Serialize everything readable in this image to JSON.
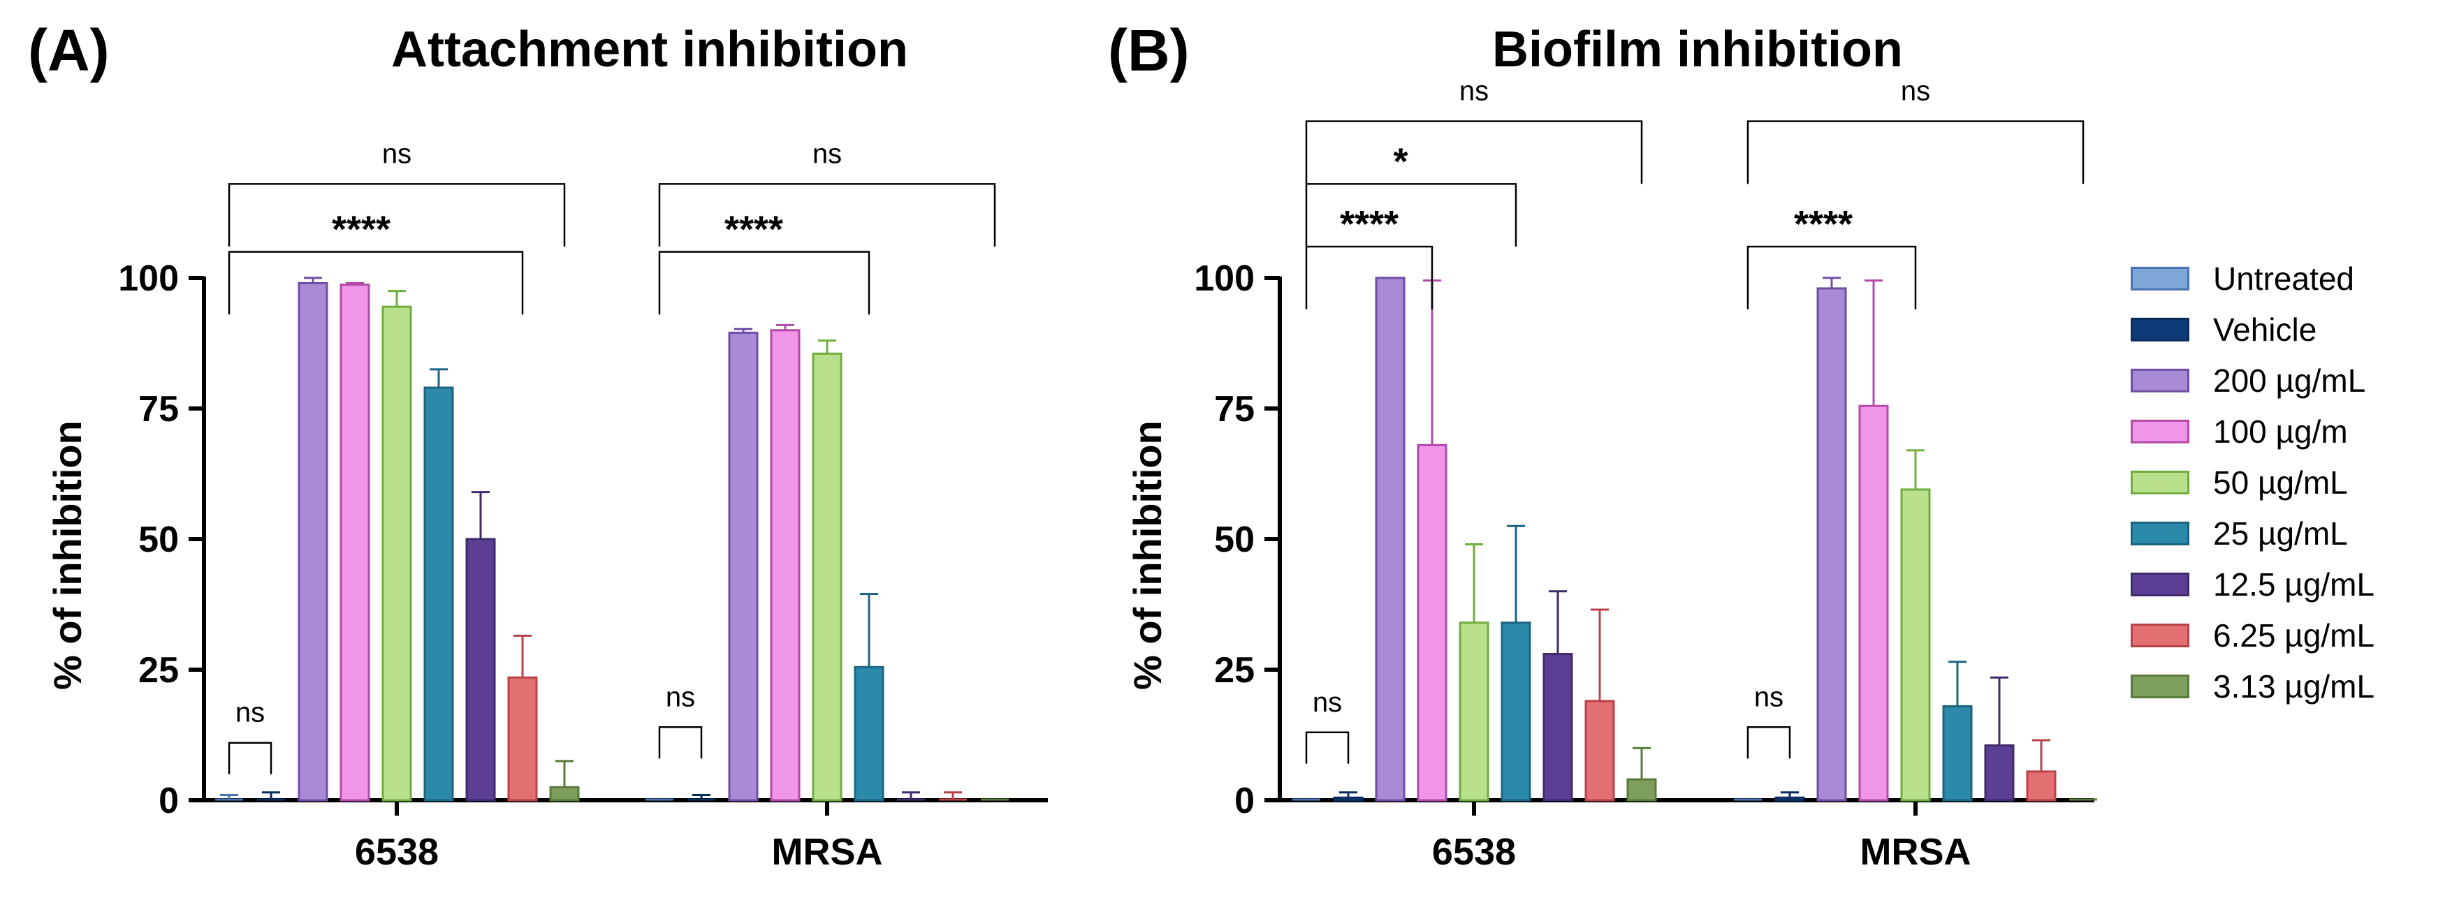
{
  "colors": {
    "Untreated": {
      "fill": "#7ea7d8",
      "stroke": "#4a74b3"
    },
    "Vehicle": {
      "fill": "#0d3b7a",
      "stroke": "#0a2d5e"
    },
    "200 µg/mL": {
      "fill": "#a98ad6",
      "stroke": "#6d4fa6"
    },
    "100 µg/m": {
      "fill": "#f095e8",
      "stroke": "#b44aa8"
    },
    "50 µg/mL": {
      "fill": "#b9e08c",
      "stroke": "#6fae3e"
    },
    "25 µg/mL": {
      "fill": "#2b8aaa",
      "stroke": "#1c6480"
    },
    "12.5 µg/mL": {
      "fill": "#5c3e95",
      "stroke": "#3f2a6b"
    },
    "6.25 µg/mL": {
      "fill": "#e46f73",
      "stroke": "#b84248"
    },
    "3.13 µg/mL": {
      "fill": "#7e9e5c",
      "stroke": "#5a7a3c"
    }
  },
  "legend": {
    "items": [
      "Untreated",
      "Vehicle",
      "200 µg/mL",
      "100 µg/m",
      "50 µg/mL",
      "25 µg/mL",
      "12.5 µg/mL",
      "6.25 µg/mL",
      "3.13 µg/mL"
    ]
  },
  "chart_data": [
    {
      "panel_label": "(A)",
      "type": "bar",
      "title": "Attachment inhibition",
      "xlabel": "",
      "ylabel": "% of inhibition",
      "ylim": [
        0,
        100
      ],
      "yticks": [
        0,
        25,
        50,
        75,
        100
      ],
      "categories": [
        "6538",
        "MRSA"
      ],
      "series": [
        {
          "name": "Untreated",
          "values": [
            0,
            0
          ],
          "errors": [
            1,
            0
          ]
        },
        {
          "name": "Vehicle",
          "values": [
            0,
            0
          ],
          "errors": [
            1.5,
            1
          ]
        },
        {
          "name": "200 µg/mL",
          "values": [
            99,
            89.5
          ],
          "errors": [
            1,
            0.7
          ]
        },
        {
          "name": "100 µg/m",
          "values": [
            98.7,
            90
          ],
          "errors": [
            0.3,
            1
          ]
        },
        {
          "name": "50 µg/mL",
          "values": [
            94.5,
            85.5
          ],
          "errors": [
            3,
            2.5
          ]
        },
        {
          "name": "25 µg/mL",
          "values": [
            79,
            25.5
          ],
          "errors": [
            3.5,
            14
          ]
        },
        {
          "name": "12.5 µg/mL",
          "values": [
            50,
            0
          ],
          "errors": [
            9,
            1.5
          ]
        },
        {
          "name": "6.25 µg/mL",
          "values": [
            23.5,
            0
          ],
          "errors": [
            8,
            1.5
          ]
        },
        {
          "name": "3.13 µg/mL",
          "values": [
            2.5,
            0
          ],
          "errors": [
            5,
            0
          ]
        }
      ],
      "significance": [
        {
          "label": "ns",
          "category": 0,
          "from": 0,
          "to": 1,
          "level": 11
        },
        {
          "label": "****",
          "category": 0,
          "from": 0,
          "to": 7,
          "level": 105
        },
        {
          "label": "ns",
          "category": 0,
          "from": 0,
          "to": 8,
          "level": 118
        },
        {
          "label": "ns",
          "category": 1,
          "from": 0,
          "to": 1,
          "level": 14
        },
        {
          "label": "****",
          "category": 1,
          "from": 0,
          "to": 5,
          "level": 105
        },
        {
          "label": "ns",
          "category": 1,
          "from": 0,
          "to": 8,
          "level": 118
        }
      ]
    },
    {
      "panel_label": "(B)",
      "type": "bar",
      "title": "Biofilm inhibition",
      "xlabel": "",
      "ylabel": "% of inhibition",
      "ylim": [
        0,
        100
      ],
      "yticks": [
        0,
        25,
        50,
        75,
        100
      ],
      "categories": [
        "6538",
        "MRSA"
      ],
      "series": [
        {
          "name": "Untreated",
          "values": [
            0,
            0
          ],
          "errors": [
            0,
            0
          ]
        },
        {
          "name": "Vehicle",
          "values": [
            0.5,
            0.5
          ],
          "errors": [
            1,
            1
          ]
        },
        {
          "name": "200 µg/mL",
          "values": [
            100,
            98
          ],
          "errors": [
            0,
            2
          ]
        },
        {
          "name": "100 µg/m",
          "values": [
            68,
            75.5
          ],
          "errors": [
            31.5,
            24
          ]
        },
        {
          "name": "50 µg/mL",
          "values": [
            34,
            59.5
          ],
          "errors": [
            15,
            7.5
          ]
        },
        {
          "name": "25 µg/mL",
          "values": [
            34,
            18
          ],
          "errors": [
            18.5,
            8.5
          ]
        },
        {
          "name": "12.5 µg/mL",
          "values": [
            28,
            10.5
          ],
          "errors": [
            12,
            13
          ]
        },
        {
          "name": "6.25 µg/mL",
          "values": [
            19,
            5.5
          ],
          "errors": [
            17.5,
            6
          ]
        },
        {
          "name": "3.13 µg/mL",
          "values": [
            4,
            0
          ],
          "errors": [
            6,
            0
          ]
        }
      ],
      "significance": [
        {
          "label": "ns",
          "category": 0,
          "from": 0,
          "to": 1,
          "level": 13
        },
        {
          "label": "****",
          "category": 0,
          "from": 0,
          "to": 3,
          "level": 106
        },
        {
          "label": "*",
          "category": 0,
          "from": 0,
          "to": 5,
          "level": 118
        },
        {
          "label": "ns",
          "category": 0,
          "from": 0,
          "to": 8,
          "level": 130
        },
        {
          "label": "ns",
          "category": 1,
          "from": 0,
          "to": 1,
          "level": 14
        },
        {
          "label": "****",
          "category": 1,
          "from": 0,
          "to": 4,
          "level": 106
        },
        {
          "label": "ns",
          "category": 1,
          "from": 0,
          "to": 8,
          "level": 130
        }
      ]
    }
  ]
}
